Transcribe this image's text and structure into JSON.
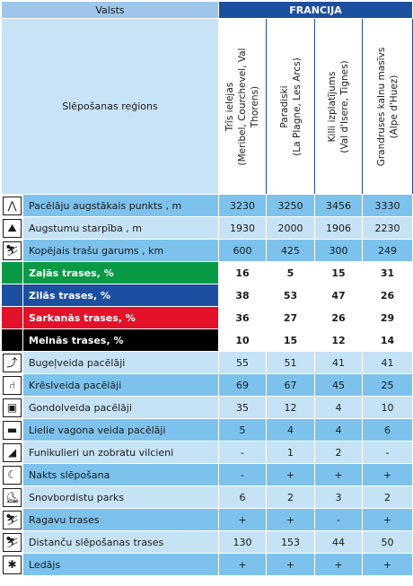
{
  "header": {
    "valsts_label": "Valsts",
    "country": "FRANCIJA",
    "region_label": "Slēpošanas reģions",
    "resorts": [
      {
        "line1": "Trīs ielejas",
        "line2": "(Meribel, Courchevel, Val",
        "line3": "Thorens)"
      },
      {
        "line1": "Paradiski",
        "line2": "(La Plagne, Les Arcs)",
        "line3": ""
      },
      {
        "line1": "Killi izplatījums",
        "line2": "(Val d'Isere, Tignes)",
        "line3": ""
      },
      {
        "line1": "Grandruses kalnu masīvs",
        "line2": "(Alpe d'Huez)",
        "line3": ""
      }
    ]
  },
  "rows": [
    {
      "icon": "lift-peak-icon",
      "glyph": "⋀",
      "label": "Pacēlāju augstākais punkts , m",
      "values": [
        "3230",
        "3250",
        "3456",
        "3330"
      ]
    },
    {
      "icon": "mountain-profile-icon",
      "glyph": "⛰",
      "label": "Augstumu starpība , m",
      "values": [
        "1930",
        "2000",
        "1906",
        "2230"
      ]
    },
    {
      "icon": "skier-trail-icon",
      "glyph": "⛷",
      "label": "Kopējais trašu garums , km",
      "values": [
        "600",
        "425",
        "300",
        "249"
      ]
    },
    {
      "icon": "",
      "glyph": "",
      "label": "Zaļās trases, %",
      "values": [
        "16",
        "5",
        "15",
        "31"
      ]
    },
    {
      "icon": "",
      "glyph": "",
      "label": "Zilās trases, %",
      "values": [
        "38",
        "53",
        "47",
        "26"
      ]
    },
    {
      "icon": "",
      "glyph": "",
      "label": "Sarkanās trases, %",
      "values": [
        "36",
        "27",
        "26",
        "29"
      ]
    },
    {
      "icon": "",
      "glyph": "",
      "label": "Melnās trases, %",
      "values": [
        "10",
        "15",
        "12",
        "14"
      ]
    },
    {
      "icon": "drag-lift-icon",
      "glyph": "⤴",
      "label": "Bugeļveida pacēlāji",
      "values": [
        "55",
        "51",
        "41",
        "41"
      ]
    },
    {
      "icon": "chairlift-icon",
      "glyph": "⑁",
      "label": "Krēslveida pacēlāji",
      "values": [
        "69",
        "67",
        "45",
        "25"
      ]
    },
    {
      "icon": "gondola-icon",
      "glyph": "▣",
      "label": "Gondolveida pacēlāji",
      "values": [
        "35",
        "12",
        "4",
        "10"
      ]
    },
    {
      "icon": "cable-car-icon",
      "glyph": "▬",
      "label": "Lielie vagona veida pacēlāji",
      "values": [
        "5",
        "4",
        "4",
        "6"
      ]
    },
    {
      "icon": "funicular-icon",
      "glyph": "◢",
      "label": "Funikulieri un zobratu vilcieni",
      "values": [
        "-",
        "1",
        "2",
        "-"
      ]
    },
    {
      "icon": "night-skiing-icon",
      "glyph": "☾",
      "label": "Nakts slēpošana",
      "values": [
        "-",
        "+",
        "+",
        "+"
      ]
    },
    {
      "icon": "snowboard-park-icon",
      "glyph": "⛸",
      "label": "Snovbordistu parks",
      "values": [
        "6",
        "2",
        "3",
        "2"
      ]
    },
    {
      "icon": "sledge-icon",
      "glyph": "⛷",
      "label": "Ragavu trases",
      "values": [
        "+",
        "+",
        "-",
        "+"
      ]
    },
    {
      "icon": "cross-country-icon",
      "glyph": "⛷",
      "label": "Distanču slēpošanas trases",
      "values": [
        "130",
        "153",
        "44",
        "50"
      ]
    },
    {
      "icon": "glacier-icon",
      "glyph": "✱",
      "label": "Ledājs",
      "values": [
        "+",
        "+",
        "+",
        "+"
      ]
    }
  ]
}
